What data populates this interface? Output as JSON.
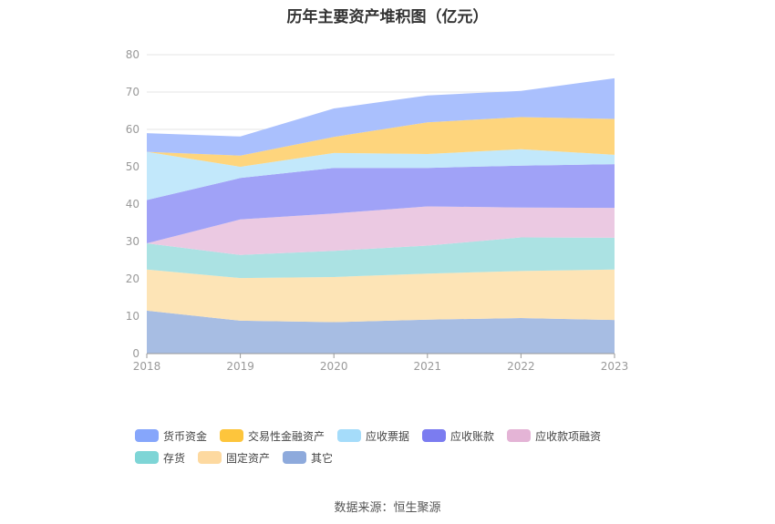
{
  "chart_data": {
    "type": "area",
    "stacked": true,
    "title": "历年主要资产堆积图（亿元）",
    "x": [
      "2018",
      "2019",
      "2020",
      "2021",
      "2022",
      "2023"
    ],
    "ylim": [
      0,
      80
    ],
    "yticks": [
      0,
      10,
      20,
      30,
      40,
      50,
      60,
      70,
      80
    ],
    "grid": true,
    "legend_position": "bottom",
    "series": [
      {
        "name": "其它",
        "color": "#a7bde3",
        "values": [
          11.5,
          8.8,
          8.4,
          9.1,
          9.5,
          9.0
        ]
      },
      {
        "name": "固定资产",
        "color": "#fde4b6",
        "values": [
          11.0,
          11.4,
          12.1,
          12.3,
          12.6,
          13.5
        ]
      },
      {
        "name": "存货",
        "color": "#abe2e3",
        "values": [
          7.0,
          6.2,
          7.0,
          7.5,
          9.0,
          8.5
        ]
      },
      {
        "name": "应收款项融资",
        "color": "#ebc9e2",
        "values": [
          0.0,
          9.5,
          10.0,
          10.5,
          8.0,
          8.0
        ]
      },
      {
        "name": "应收账款",
        "color": "#a0a2f7",
        "values": [
          11.6,
          11.1,
          12.2,
          10.3,
          11.2,
          11.7
        ]
      },
      {
        "name": "应收票据",
        "color": "#c2e8fb",
        "values": [
          12.9,
          3.0,
          4.0,
          3.7,
          4.4,
          2.5
        ]
      },
      {
        "name": "交易性金融资产",
        "color": "#fed57d",
        "values": [
          0.0,
          3.0,
          4.3,
          8.5,
          8.6,
          9.6
        ]
      },
      {
        "name": "货币资金",
        "color": "#aac0fd",
        "values": [
          5.0,
          5.1,
          7.6,
          7.2,
          7.0,
          10.9
        ]
      }
    ],
    "legend_order": [
      "货币资金",
      "交易性金融资产",
      "应收票据",
      "应收账款",
      "应收款项融资",
      "存货",
      "固定资产",
      "其它"
    ],
    "legend_colors": {
      "货币资金": "#86a6fb",
      "交易性金融资产": "#fdc53c",
      "应收票据": "#a5dcfa",
      "应收账款": "#7b7cf0",
      "应收款项融资": "#e4b4d6",
      "存货": "#7ed5d6",
      "固定资产": "#fdd9a0",
      "其它": "#8eaadc"
    }
  },
  "source_text": "数据来源：恒生聚源"
}
